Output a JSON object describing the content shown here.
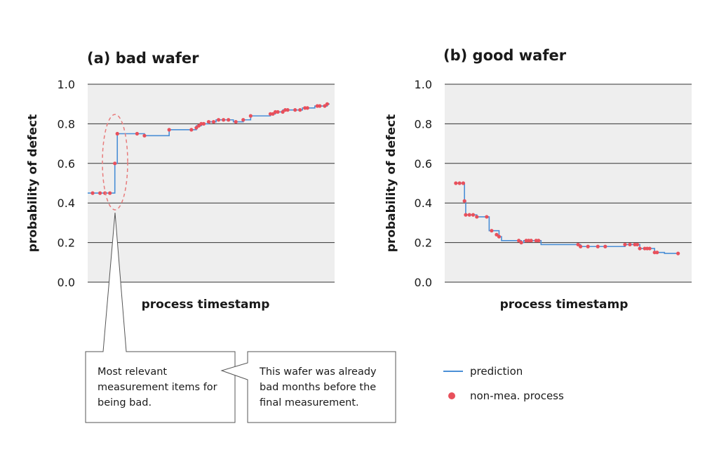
{
  "chart_data": [
    {
      "type": "line",
      "title": "(a) bad wafer",
      "xlabel": "process timestamp",
      "ylabel": "probability of defect",
      "ylim": [
        0,
        1
      ],
      "yticks": [
        "1.0",
        "0.8",
        "0.6",
        "0.4",
        "0.2",
        "0.0"
      ],
      "grid": true,
      "series": [
        {
          "name": "prediction",
          "style": "step",
          "color": "#4a8fd6",
          "points": [
            [
              0.0,
              0.45
            ],
            [
              0.09,
              0.45
            ],
            [
              0.11,
              0.6
            ],
            [
              0.12,
              0.75
            ],
            [
              0.2,
              0.75
            ],
            [
              0.23,
              0.74
            ],
            [
              0.32,
              0.74
            ],
            [
              0.33,
              0.77
            ],
            [
              0.42,
              0.77
            ],
            [
              0.44,
              0.79
            ],
            [
              0.46,
              0.8
            ],
            [
              0.49,
              0.81
            ],
            [
              0.52,
              0.82
            ],
            [
              0.58,
              0.82
            ],
            [
              0.59,
              0.81
            ],
            [
              0.62,
              0.81
            ],
            [
              0.63,
              0.82
            ],
            [
              0.65,
              0.82
            ],
            [
              0.66,
              0.84
            ],
            [
              0.73,
              0.84
            ],
            [
              0.74,
              0.85
            ],
            [
              0.76,
              0.86
            ],
            [
              0.79,
              0.87
            ],
            [
              0.82,
              0.87
            ],
            [
              0.84,
              0.87
            ],
            [
              0.87,
              0.88
            ],
            [
              0.9,
              0.88
            ],
            [
              0.92,
              0.89
            ],
            [
              0.95,
              0.89
            ],
            [
              0.97,
              0.9
            ],
            [
              0.98,
              0.9
            ]
          ]
        },
        {
          "name": "non-mea. process",
          "style": "scatter",
          "color": "#e8505b",
          "points": [
            [
              0.02,
              0.45
            ],
            [
              0.05,
              0.45
            ],
            [
              0.07,
              0.45
            ],
            [
              0.09,
              0.45
            ],
            [
              0.11,
              0.6
            ],
            [
              0.12,
              0.75
            ],
            [
              0.2,
              0.75
            ],
            [
              0.23,
              0.74
            ],
            [
              0.33,
              0.77
            ],
            [
              0.42,
              0.77
            ],
            [
              0.44,
              0.78
            ],
            [
              0.45,
              0.79
            ],
            [
              0.46,
              0.8
            ],
            [
              0.47,
              0.8
            ],
            [
              0.49,
              0.81
            ],
            [
              0.51,
              0.81
            ],
            [
              0.53,
              0.82
            ],
            [
              0.55,
              0.82
            ],
            [
              0.57,
              0.82
            ],
            [
              0.6,
              0.81
            ],
            [
              0.63,
              0.82
            ],
            [
              0.66,
              0.84
            ],
            [
              0.74,
              0.85
            ],
            [
              0.75,
              0.85
            ],
            [
              0.76,
              0.86
            ],
            [
              0.77,
              0.86
            ],
            [
              0.79,
              0.86
            ],
            [
              0.8,
              0.87
            ],
            [
              0.81,
              0.87
            ],
            [
              0.84,
              0.87
            ],
            [
              0.86,
              0.87
            ],
            [
              0.88,
              0.88
            ],
            [
              0.89,
              0.88
            ],
            [
              0.93,
              0.89
            ],
            [
              0.94,
              0.89
            ],
            [
              0.96,
              0.89
            ],
            [
              0.97,
              0.9
            ]
          ]
        }
      ]
    },
    {
      "type": "line",
      "title": "(b) good wafer",
      "xlabel": "process timestamp",
      "ylabel": "probability of defect",
      "ylim": [
        0,
        1
      ],
      "yticks": [
        "1.0",
        "0.8",
        "0.6",
        "0.4",
        "0.2",
        "0.0"
      ],
      "grid": true,
      "series": [
        {
          "name": "prediction",
          "style": "step",
          "color": "#4a8fd6",
          "points": [
            [
              0.04,
              0.5
            ],
            [
              0.075,
              0.5
            ],
            [
              0.08,
              0.41
            ],
            [
              0.085,
              0.34
            ],
            [
              0.12,
              0.34
            ],
            [
              0.13,
              0.33
            ],
            [
              0.17,
              0.33
            ],
            [
              0.18,
              0.26
            ],
            [
              0.21,
              0.26
            ],
            [
              0.22,
              0.23
            ],
            [
              0.23,
              0.21
            ],
            [
              0.3,
              0.21
            ],
            [
              0.31,
              0.2
            ],
            [
              0.32,
              0.21
            ],
            [
              0.38,
              0.21
            ],
            [
              0.39,
              0.19
            ],
            [
              0.54,
              0.19
            ],
            [
              0.55,
              0.18
            ],
            [
              0.72,
              0.18
            ],
            [
              0.73,
              0.19
            ],
            [
              0.78,
              0.19
            ],
            [
              0.79,
              0.17
            ],
            [
              0.84,
              0.17
            ],
            [
              0.85,
              0.15
            ],
            [
              0.88,
              0.15
            ],
            [
              0.89,
              0.145
            ],
            [
              0.94,
              0.145
            ]
          ]
        },
        {
          "name": "non-mea. process",
          "style": "scatter",
          "color": "#e8505b",
          "points": [
            [
              0.045,
              0.5
            ],
            [
              0.06,
              0.5
            ],
            [
              0.075,
              0.5
            ],
            [
              0.08,
              0.41
            ],
            [
              0.085,
              0.34
            ],
            [
              0.1,
              0.34
            ],
            [
              0.115,
              0.34
            ],
            [
              0.13,
              0.33
            ],
            [
              0.17,
              0.33
            ],
            [
              0.19,
              0.26
            ],
            [
              0.21,
              0.24
            ],
            [
              0.22,
              0.23
            ],
            [
              0.3,
              0.21
            ],
            [
              0.31,
              0.2
            ],
            [
              0.33,
              0.21
            ],
            [
              0.34,
              0.21
            ],
            [
              0.35,
              0.21
            ],
            [
              0.37,
              0.21
            ],
            [
              0.38,
              0.21
            ],
            [
              0.54,
              0.19
            ],
            [
              0.55,
              0.18
            ],
            [
              0.58,
              0.18
            ],
            [
              0.62,
              0.18
            ],
            [
              0.65,
              0.18
            ],
            [
              0.73,
              0.19
            ],
            [
              0.75,
              0.19
            ],
            [
              0.77,
              0.19
            ],
            [
              0.78,
              0.19
            ],
            [
              0.79,
              0.17
            ],
            [
              0.81,
              0.17
            ],
            [
              0.82,
              0.17
            ],
            [
              0.83,
              0.17
            ],
            [
              0.85,
              0.15
            ],
            [
              0.86,
              0.15
            ],
            [
              0.945,
              0.145
            ]
          ]
        }
      ],
      "annotation_ellipse_series_range": null
    }
  ],
  "legend": {
    "prediction_label": "prediction",
    "prediction_color": "#4a8fd6",
    "nonmea_label": "non-mea. process",
    "nonmea_color": "#e8505b"
  },
  "callouts": {
    "left_lines": [
      "Most relevant",
      "measurement items for",
      "being bad."
    ],
    "right_lines": [
      "This wafer was already",
      "bad months before the",
      "final measurement."
    ]
  }
}
